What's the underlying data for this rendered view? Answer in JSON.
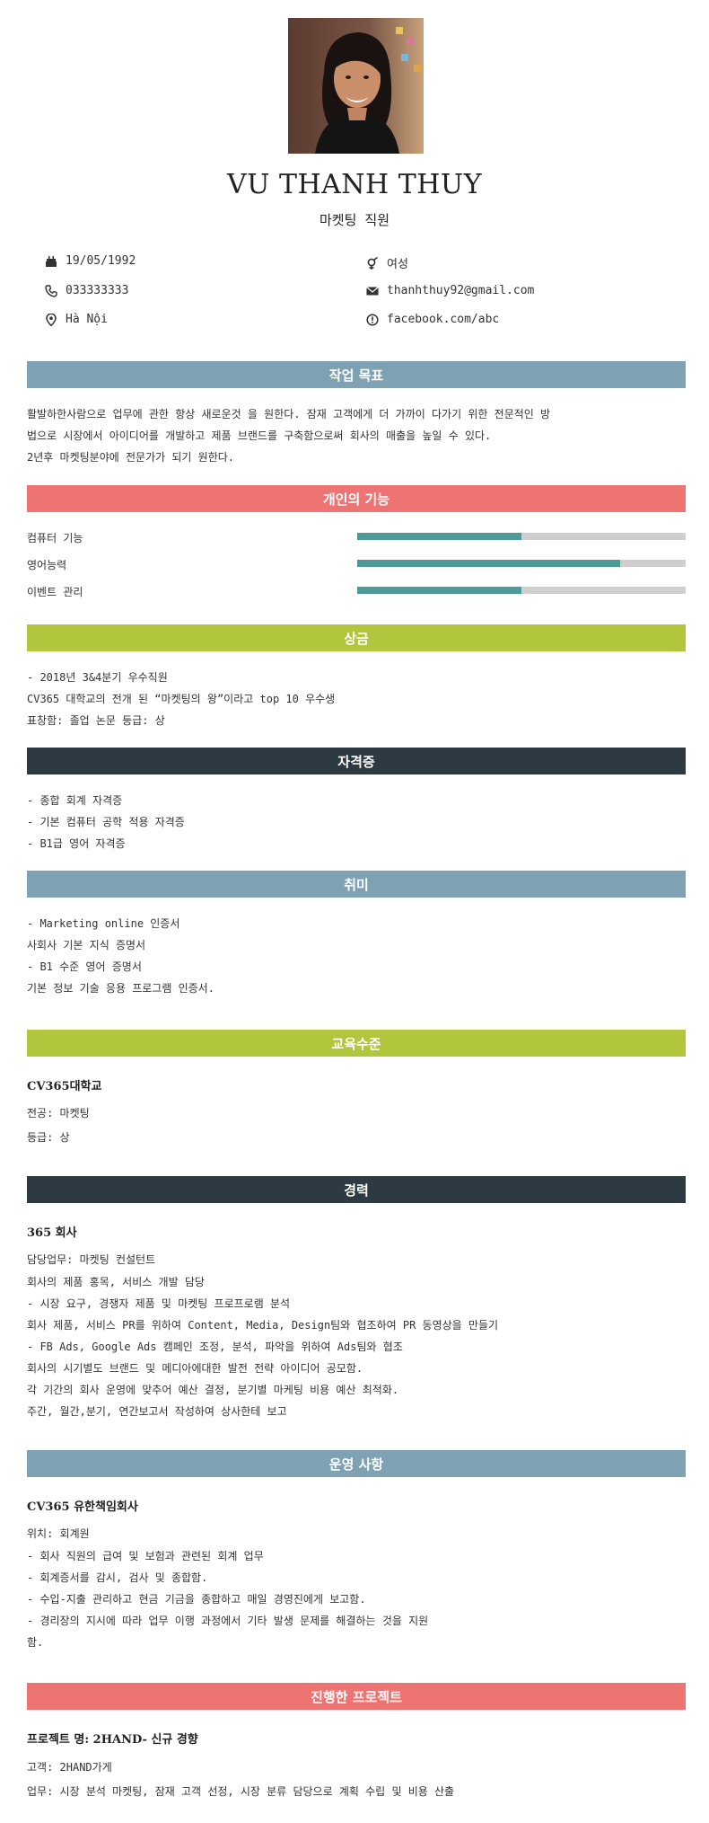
{
  "profile": {
    "name": "VU THANH THUY",
    "title": "마켓팅 직원"
  },
  "info": {
    "birthday": "19/05/1992",
    "gender": "여성",
    "phone": "033333333",
    "email": "thanhthuy92@gmail.com",
    "address": "Hà Nội",
    "website": "facebook.com/abc",
    "icons": [
      "cake-icon",
      "gender-icon",
      "phone-icon",
      "mail-icon",
      "location-icon",
      "info-icon"
    ]
  },
  "sections": {
    "objective": "작업 목표",
    "skills": "개인의 기능",
    "awards": "상금",
    "certificates": "자격증",
    "hobbies": "취미",
    "education": "교육수준",
    "experience": "경력",
    "activities": "운영 사항",
    "projects": "진행한 프로젝트"
  },
  "objective": {
    "line1": "활발하한사람으로  업무에 관한 항상 새로운것 을 원한다. 잠재 고객에게 더 가까이 다가기 위한 전문적인 방",
    "line2": "법으로 시장에서 아이디어를 개발하고 제품 브랜드를 구축함으로써 회사의 매출을 높일 수 있다.",
    "line3": "2년후 마켓팅분야에 전문가가 되기 원한다."
  },
  "skills": [
    {
      "label": "컴퓨터 기능",
      "level": 0.5
    },
    {
      "label": "영어능력",
      "level": 0.8
    },
    {
      "label": "이벤트 관리",
      "level": 0.5
    }
  ],
  "awards": [
    "- 2018년 3&4분기 우수직원",
    "CV365 대학교의 전개 된 “마켓팅의 왕”이라고 top 10 우수생",
    "표창함:  졸업 논문 등급: 상"
  ],
  "certificates": [
    "- 종합 회계 자격증",
    "- 기본 컴퓨터 공학 적용 자격증",
    "- B1급 영어 자격증"
  ],
  "hobbies": [
    "- Marketing online 인증서",
    "사회사 기본 지식 증명서",
    "- B1 수준 영어 증명서",
    "기본 정보 기술 응용 프로그램 인증서."
  ],
  "education": {
    "school": "CV365대학교",
    "major": "전공: 마켓팅",
    "grade": "등급: 상"
  },
  "experience": {
    "company": "365 회사",
    "role": "담당업무: 마켓팅 컨설턴트",
    "lines": [
      "회사의 제품 홍목, 서비스  개발 담당",
      "- 시장 요구, 경쟁자 제품 및 마켓팅 프로프로램 분석",
      "회사 제품, 서비스 PR를 위하여 Content, Media, Design팀와 협조하여 PR 동영상을 만들기",
      "- FB Ads, Google Ads 캠페인 조정, 분석, 파악을 위하여 Ads팀와 협조",
      "회사의  시기별도 브랜드 및 메디아에대한 발전 전략  아이디어 공모함.",
      "각 기간의 회사 운영에 맞추어 예산 결정, 분기별 마케팅 비용 예산 최적화.",
      "주간, 월간,분기, 연간보고서 작성하여 상사한테 보고"
    ]
  },
  "activities": {
    "company": "CV365 유한책임회사",
    "role": "위치: 회계원",
    "lines": [
      "- 회사 직원의 급여 및 보험과 관련된 회계 업무",
      "- 회계증서를 감시, 검사 및 종합함.",
      "- 수입-지출 관리하고 현금 기금을 종합하고 매일 경영진에게 보고함.",
      "- 경리장의 지시에 따라 업무 이행  과정에서 기타 발생 문제를 해결하는 것을 지원",
      "함."
    ]
  },
  "projects": {
    "name": "프로젝트 명: 2HAND- 신규 경향",
    "client": "고객: 2HAND가게",
    "task": "업무: 시장 분석 마켓팅, 잠재 고객 선정, 시장 분류 담당으로 계획 수립 및 비용 산출"
  },
  "colors": {
    "blue": "#7fa1b4",
    "red": "#ee7373",
    "green": "#b1c53d",
    "dark": "#2d3a41",
    "skill_fill": "#4d9a97",
    "skill_track": "#cfcfcf"
  }
}
